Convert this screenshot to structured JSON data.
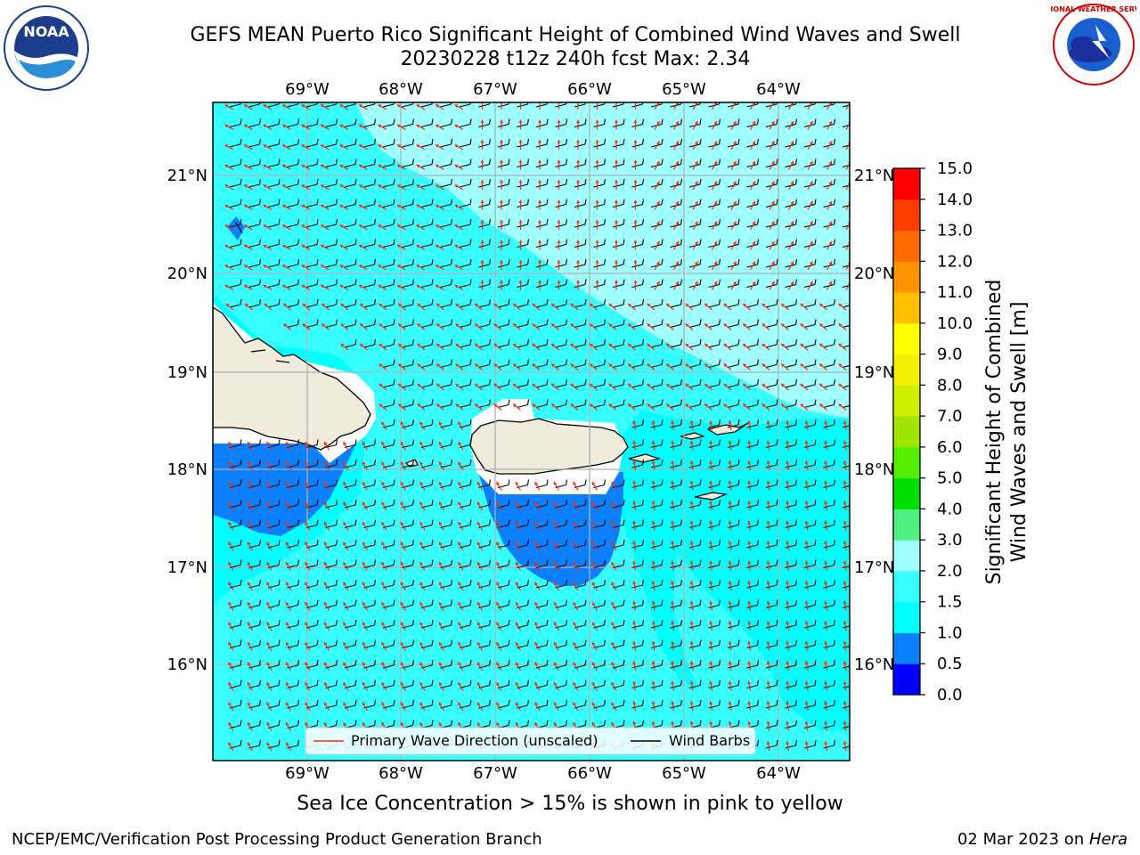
{
  "header": {
    "title_line1": "GEFS MEAN Puerto Rico Significant Height of Combined Wind Waves and Swell",
    "title_line2": "20230228 t12z 240h fcst   Max: 2.34"
  },
  "logos": {
    "left": {
      "text": "NOAA",
      "ring_text": "NATIONAL OCEANIC AND ATMOSPHERIC ADMINISTRATION · U.S. DEPARTMENT OF COMMERCE",
      "icon": "noaa-logo"
    },
    "right": {
      "ring_text": "NATIONAL WEATHER SERVICE",
      "icon": "nws-logo"
    }
  },
  "map": {
    "lon_labels": [
      "69°W",
      "68°W",
      "67°W",
      "66°W",
      "65°W",
      "64°W"
    ],
    "lat_labels": [
      "21°N",
      "20°N",
      "19°N",
      "18°N",
      "17°N",
      "16°N"
    ],
    "legend": {
      "wave_label": "Primary Wave Direction (unscaled)",
      "barb_label": "Wind Barbs",
      "wave_color": "#ff2a00",
      "barb_color": "#000000"
    }
  },
  "colorbar": {
    "label_line1": "Significant Height of Combined",
    "label_line2": "Wind Waves and Swell [m]",
    "ticks": [
      "0.0",
      "0.5",
      "1.0",
      "1.5",
      "2.0",
      "3.0",
      "4.0",
      "5.0",
      "6.0",
      "7.0",
      "8.0",
      "9.0",
      "10.0",
      "11.0",
      "12.0",
      "13.0",
      "14.0",
      "15.0"
    ],
    "colors": [
      "#0000ff",
      "#0a80ff",
      "#00ffff",
      "#38ffff",
      "#a0ffff",
      "#50f080",
      "#00dd00",
      "#55ee00",
      "#a0e600",
      "#ccf000",
      "#f2f000",
      "#ffff00",
      "#ffc000",
      "#ff9400",
      "#ff6a00",
      "#ff3c00",
      "#ff0000"
    ]
  },
  "note": "Sea Ice Concentration > 15% is shown in pink to yellow",
  "footer": {
    "left": "NCEP/EMC/Verification Post Processing Product Generation Branch",
    "date": "02 Mar 2023 on ",
    "machine": "Hera"
  }
}
